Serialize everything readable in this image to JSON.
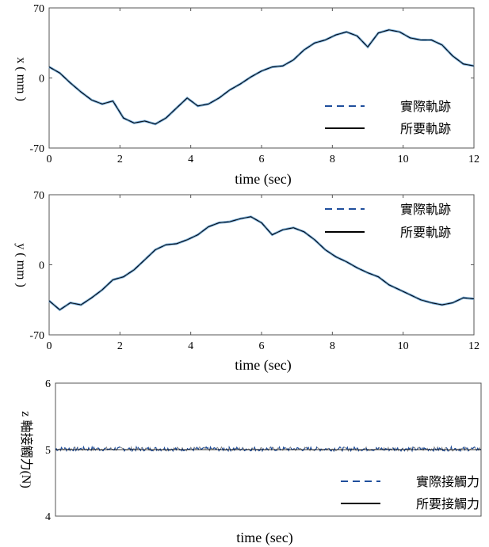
{
  "chart_data": [
    {
      "type": "line",
      "xlabel": "time (sec)",
      "ylabel": "x ( mm )",
      "xlim": [
        0,
        12
      ],
      "ylim": [
        -70,
        70
      ],
      "xticks": [
        "0",
        "2",
        "4",
        "6",
        "8",
        "10",
        "12"
      ],
      "yticks": [
        "70",
        "0",
        "-70"
      ],
      "legend_position": "bottom-right",
      "series": [
        {
          "name": "實際軌跡",
          "style": "dashed",
          "color": "#1f4e9c",
          "x": [
            0,
            0.3,
            0.6,
            0.9,
            1.2,
            1.5,
            1.8,
            2.1,
            2.4,
            2.7,
            3.0,
            3.3,
            3.6,
            3.9,
            4.2,
            4.5,
            4.8,
            5.1,
            5.4,
            5.7,
            6.0,
            6.3,
            6.6,
            6.9,
            7.2,
            7.5,
            7.8,
            8.1,
            8.4,
            8.7,
            9.0,
            9.3,
            9.6,
            9.9,
            10.2,
            10.5,
            10.8,
            11.1,
            11.4,
            11.7,
            12.0
          ],
          "y": [
            11,
            5,
            -5,
            -14,
            -22,
            -26,
            -23,
            -40,
            -45,
            -43,
            -46,
            -40,
            -30,
            -20,
            -28,
            -26,
            -20,
            -12,
            -6,
            1,
            7,
            11,
            12,
            18,
            28,
            35,
            38,
            43,
            46,
            42,
            31,
            45,
            48,
            46,
            40,
            38,
            38,
            33,
            22,
            14,
            12
          ]
        },
        {
          "name": "所要軌跡",
          "style": "solid",
          "color": "#000000",
          "x": [
            0,
            0.3,
            0.6,
            0.9,
            1.2,
            1.5,
            1.8,
            2.1,
            2.4,
            2.7,
            3.0,
            3.3,
            3.6,
            3.9,
            4.2,
            4.5,
            4.8,
            5.1,
            5.4,
            5.7,
            6.0,
            6.3,
            6.6,
            6.9,
            7.2,
            7.5,
            7.8,
            8.1,
            8.4,
            8.7,
            9.0,
            9.3,
            9.6,
            9.9,
            10.2,
            10.5,
            10.8,
            11.1,
            11.4,
            11.7,
            12.0
          ],
          "y": [
            11,
            5,
            -5,
            -14,
            -22,
            -26,
            -23,
            -40,
            -45,
            -43,
            -46,
            -40,
            -30,
            -20,
            -28,
            -26,
            -20,
            -12,
            -6,
            1,
            7,
            11,
            12,
            18,
            28,
            35,
            38,
            43,
            46,
            42,
            31,
            45,
            48,
            46,
            40,
            38,
            38,
            33,
            22,
            14,
            12
          ]
        }
      ]
    },
    {
      "type": "line",
      "xlabel": "time (sec)",
      "ylabel": "y ( mm )",
      "xlim": [
        0,
        12
      ],
      "ylim": [
        -70,
        70
      ],
      "xticks": [
        "0",
        "2",
        "4",
        "6",
        "8",
        "10",
        "12"
      ],
      "yticks": [
        "70",
        "0",
        "-70"
      ],
      "legend_position": "top-right",
      "series": [
        {
          "name": "實際軌跡",
          "style": "dashed",
          "color": "#1f4e9c",
          "x": [
            0,
            0.3,
            0.6,
            0.9,
            1.2,
            1.5,
            1.8,
            2.1,
            2.4,
            2.7,
            3.0,
            3.3,
            3.6,
            3.9,
            4.2,
            4.5,
            4.8,
            5.1,
            5.4,
            5.7,
            6.0,
            6.3,
            6.6,
            6.9,
            7.2,
            7.5,
            7.8,
            8.1,
            8.4,
            8.7,
            9.0,
            9.3,
            9.6,
            9.9,
            10.2,
            10.5,
            10.8,
            11.1,
            11.4,
            11.7,
            12.0
          ],
          "y": [
            -36,
            -45,
            -38,
            -40,
            -33,
            -25,
            -15,
            -12,
            -5,
            5,
            15,
            20,
            21,
            25,
            30,
            38,
            42,
            43,
            46,
            48,
            42,
            30,
            35,
            37,
            33,
            25,
            15,
            8,
            3,
            -3,
            -8,
            -12,
            -20,
            -25,
            -30,
            -35,
            -38,
            -40,
            -38,
            -33,
            -34
          ]
        },
        {
          "name": "所要軌跡",
          "style": "solid",
          "color": "#000000",
          "x": [
            0,
            0.3,
            0.6,
            0.9,
            1.2,
            1.5,
            1.8,
            2.1,
            2.4,
            2.7,
            3.0,
            3.3,
            3.6,
            3.9,
            4.2,
            4.5,
            4.8,
            5.1,
            5.4,
            5.7,
            6.0,
            6.3,
            6.6,
            6.9,
            7.2,
            7.5,
            7.8,
            8.1,
            8.4,
            8.7,
            9.0,
            9.3,
            9.6,
            9.9,
            10.2,
            10.5,
            10.8,
            11.1,
            11.4,
            11.7,
            12.0
          ],
          "y": [
            -36,
            -45,
            -38,
            -40,
            -33,
            -25,
            -15,
            -12,
            -5,
            5,
            15,
            20,
            21,
            25,
            30,
            38,
            42,
            43,
            46,
            48,
            42,
            30,
            35,
            37,
            33,
            25,
            15,
            8,
            3,
            -3,
            -8,
            -12,
            -20,
            -25,
            -30,
            -35,
            -38,
            -40,
            -38,
            -33,
            -34
          ]
        }
      ]
    },
    {
      "type": "line",
      "xlabel": "time (sec)",
      "ylabel": "z 軸接觸力(N)",
      "xlim": [
        0,
        12
      ],
      "ylim": [
        4,
        6
      ],
      "xticks": [],
      "yticks": [
        "6",
        "5",
        "4"
      ],
      "legend_position": "bottom-right",
      "series": [
        {
          "name": "實際接觸力",
          "style": "dashed",
          "color": "#1f4e9c",
          "x": [
            0,
            12
          ],
          "y": [
            5.01,
            5.01
          ],
          "noise": 0.03
        },
        {
          "name": "所要接觸力",
          "style": "solid",
          "color": "#000000",
          "x": [
            0,
            12
          ],
          "y": [
            5.0,
            5.0
          ]
        }
      ]
    }
  ]
}
